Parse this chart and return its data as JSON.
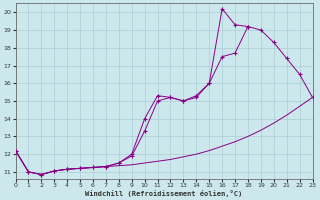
{
  "xlabel": "Windchill (Refroidissement éolien,°C)",
  "bg_color": "#cce8ec",
  "grid_color": "#aacdd4",
  "line_color": "#880088",
  "xmin": 0,
  "xmax": 23,
  "ymin": 10.6,
  "ymax": 20.5,
  "yticks": [
    11,
    12,
    13,
    14,
    15,
    16,
    17,
    18,
    19,
    20
  ],
  "xticks": [
    0,
    1,
    2,
    3,
    4,
    5,
    6,
    7,
    8,
    9,
    10,
    11,
    12,
    13,
    14,
    15,
    16,
    17,
    18,
    19,
    20,
    21,
    22,
    23
  ],
  "line1_x": [
    0,
    1,
    2,
    3,
    4,
    5,
    6,
    7,
    8,
    9,
    10,
    11,
    12,
    13,
    14,
    15,
    16,
    17,
    18,
    19,
    20,
    21,
    22,
    23
  ],
  "line1_y": [
    12.2,
    11.0,
    10.85,
    11.05,
    11.15,
    11.2,
    11.25,
    11.3,
    11.35,
    11.4,
    11.5,
    11.6,
    11.7,
    11.85,
    12.0,
    12.2,
    12.45,
    12.7,
    13.0,
    13.35,
    13.75,
    14.2,
    14.7,
    15.2
  ],
  "line2_x": [
    0,
    1,
    2,
    3,
    4,
    5,
    6,
    7,
    8,
    9,
    10,
    11,
    12,
    13,
    14,
    15,
    16,
    17,
    18,
    19,
    20,
    21,
    22,
    23
  ],
  "line2_y": [
    12.2,
    11.0,
    10.85,
    11.05,
    11.15,
    11.2,
    11.25,
    11.3,
    11.5,
    11.9,
    13.3,
    15.0,
    15.2,
    15.0,
    15.2,
    16.0,
    20.2,
    19.3,
    19.2,
    null,
    null,
    null,
    null,
    null
  ],
  "line3_x": [
    0,
    1,
    2,
    3,
    4,
    5,
    6,
    7,
    8,
    9,
    10,
    11,
    12,
    13,
    14,
    15,
    16,
    17,
    18,
    19,
    20,
    21,
    22,
    23
  ],
  "line3_y": [
    12.2,
    11.0,
    10.85,
    11.05,
    11.15,
    11.2,
    11.25,
    11.3,
    11.5,
    12.0,
    14.0,
    15.3,
    15.2,
    15.0,
    15.3,
    16.0,
    17.5,
    17.7,
    19.2,
    19.0,
    18.3,
    17.4,
    16.5,
    15.2
  ]
}
